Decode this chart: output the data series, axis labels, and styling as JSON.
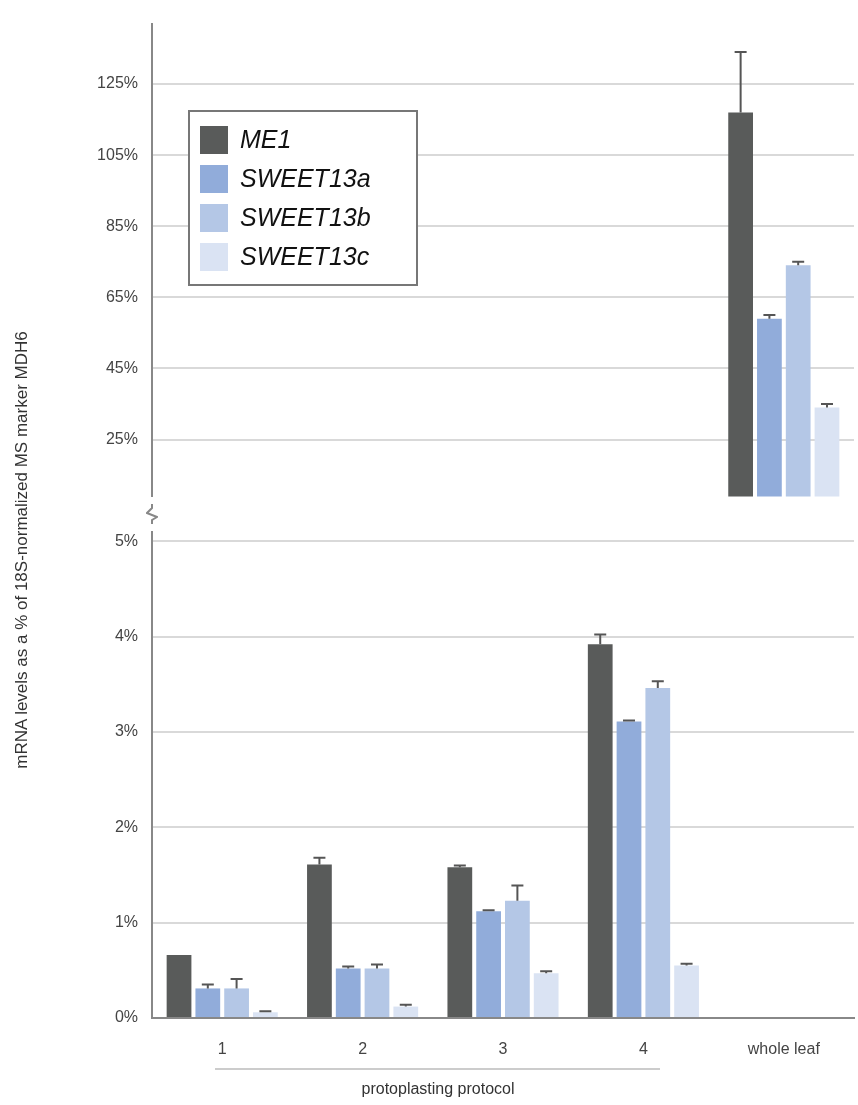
{
  "chart_data": [
    {
      "type": "bar",
      "ylabel": "mRNA levels as a % of 18S-normalized MS marker MDH6",
      "categories": [
        null,
        null,
        null,
        null,
        null
      ],
      "ylim": [
        9,
        142
      ],
      "yticks": [
        {
          "value": 25,
          "label": "25%"
        },
        {
          "value": 45,
          "label": "45%"
        },
        {
          "value": 65,
          "label": "65%"
        },
        {
          "value": 85,
          "label": "85%"
        },
        {
          "value": 105,
          "label": "105%"
        },
        {
          "value": 125,
          "label": "125%"
        }
      ],
      "grid": "y",
      "legend": "top left",
      "tick_labels": "y",
      "series": [
        {
          "name": "ME1",
          "color": "#595b5a",
          "values": [
            null,
            null,
            null,
            null,
            117
          ],
          "errors": [
            null,
            null,
            null,
            null,
            [
              117,
              134
            ]
          ]
        },
        {
          "name": "SWEET13a",
          "color": "#91acda",
          "values": [
            null,
            null,
            null,
            null,
            59
          ],
          "errors": [
            null,
            null,
            null,
            null,
            [
              59,
              60
            ]
          ]
        },
        {
          "name": "SWEET13b",
          "color": "#b4c7e6",
          "values": [
            null,
            null,
            null,
            null,
            74
          ],
          "errors": [
            null,
            null,
            null,
            null,
            [
              74,
              75
            ]
          ]
        },
        {
          "name": "SWEET13c",
          "color": "#dae3f3",
          "values": [
            null,
            null,
            null,
            null,
            34
          ],
          "errors": [
            null,
            null,
            null,
            null,
            [
              34,
              35
            ]
          ]
        }
      ]
    },
    {
      "type": "bar",
      "xlabel": "protoplasting protocol",
      "categories": [
        "1",
        "2",
        "3",
        "4",
        "whole leaf"
      ],
      "ylim": [
        0,
        5.1
      ],
      "yticks": [
        {
          "value": 0,
          "label": "0%"
        },
        {
          "value": 1,
          "label": "1%"
        },
        {
          "value": 2,
          "label": "2%"
        },
        {
          "value": 3,
          "label": "3%"
        },
        {
          "value": 4,
          "label": "4%"
        },
        {
          "value": 5,
          "label": "5%"
        }
      ],
      "grid": "y",
      "series": [
        {
          "color": "#595b5a",
          "values": [
            0.66,
            1.61,
            1.58,
            3.92,
            null
          ],
          "errors": [
            null,
            [
              1.61,
              1.68
            ],
            [
              1.58,
              1.6
            ],
            [
              3.92,
              4.02
            ],
            null
          ]
        },
        {
          "color": "#91acda",
          "values": [
            0.31,
            0.52,
            1.12,
            3.11,
            null
          ],
          "errors": [
            [
              0.31,
              0.35
            ],
            [
              0.52,
              0.54
            ],
            [
              1.12,
              1.13
            ],
            [
              3.11,
              3.12
            ],
            null
          ]
        },
        {
          "color": "#b4c7e6",
          "values": [
            0.31,
            0.52,
            1.23,
            3.46,
            null
          ],
          "errors": [
            [
              0.31,
              0.41
            ],
            [
              0.52,
              0.56
            ],
            [
              1.23,
              1.39
            ],
            [
              3.46,
              3.53
            ],
            null
          ]
        },
        {
          "color": "#dae3f3",
          "values": [
            0.06,
            0.12,
            0.47,
            0.55,
            null
          ],
          "errors": [
            [
              0.06,
              0.07
            ],
            [
              0.12,
              0.14
            ],
            [
              0.47,
              0.49
            ],
            [
              0.55,
              0.57
            ],
            null
          ]
        }
      ]
    }
  ]
}
